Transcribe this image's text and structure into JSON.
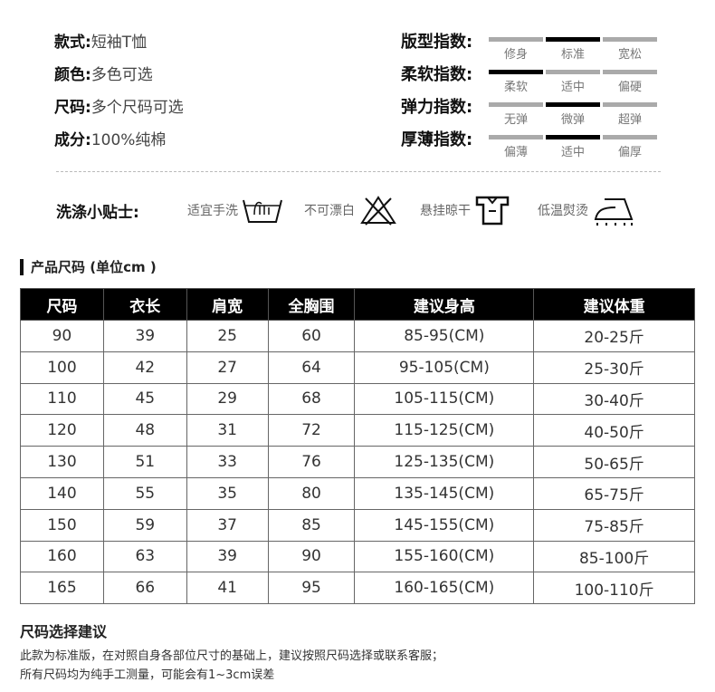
{
  "attributes": [
    {
      "label": "款式:",
      "value": "短袖T恤"
    },
    {
      "label": "颜色:",
      "value": "多色可选"
    },
    {
      "label": "尺码:",
      "value": "多个尺码可选"
    },
    {
      "label": "成分:",
      "value": "100%纯棉"
    }
  ],
  "indices": [
    {
      "label": "版型指数:",
      "options": [
        "修身",
        "标准",
        "宽松"
      ],
      "selected": 1
    },
    {
      "label": "柔软指数:",
      "options": [
        "柔软",
        "适中",
        "偏硬"
      ],
      "selected": 0
    },
    {
      "label": "弹力指数:",
      "options": [
        "无弹",
        "微弹",
        "超弹"
      ],
      "selected": 1
    },
    {
      "label": "厚薄指数:",
      "options": [
        "偏薄",
        "适中",
        "偏厚"
      ],
      "selected": 1
    }
  ],
  "care": {
    "title": "洗涤小贴士:",
    "items": [
      {
        "text": "适宜手洗",
        "icon": "hand-wash-icon"
      },
      {
        "text": "不可漂白",
        "icon": "no-bleach-icon"
      },
      {
        "text": "悬挂晾干",
        "icon": "hang-dry-icon"
      },
      {
        "text": "低温熨烫",
        "icon": "low-iron-icon"
      }
    ]
  },
  "size_section": {
    "title": "产品尺码 (单位cm )"
  },
  "table": {
    "headers": [
      "尺码",
      "衣长",
      "肩宽",
      "全胸围",
      "建议身高",
      "建议体重"
    ],
    "rows": [
      [
        "90",
        "39",
        "25",
        "60",
        "85-95(CM)",
        "20-25斤"
      ],
      [
        "100",
        "42",
        "27",
        "64",
        "95-105(CM)",
        "25-30斤"
      ],
      [
        "110",
        "45",
        "29",
        "68",
        "105-115(CM)",
        "30-40斤"
      ],
      [
        "120",
        "48",
        "31",
        "72",
        "115-125(CM)",
        "40-50斤"
      ],
      [
        "130",
        "51",
        "33",
        "76",
        "125-135(CM)",
        "50-65斤"
      ],
      [
        "140",
        "55",
        "35",
        "80",
        "135-145(CM)",
        "65-75斤"
      ],
      [
        "150",
        "59",
        "37",
        "85",
        "145-155(CM)",
        "75-85斤"
      ],
      [
        "160",
        "63",
        "39",
        "90",
        "155-160(CM)",
        "85-100斤"
      ],
      [
        "165",
        "66",
        "41",
        "95",
        "160-165(CM)",
        "100-110斤"
      ]
    ]
  },
  "advice": {
    "title": "尺码选择建议",
    "lines": [
      "此款为标准版，在对照自身各部位尺寸的基础上，建议按照尺码选择或联系客服；",
      "所有尺码均为纯手工测量，可能会有1~3cm误差"
    ]
  }
}
